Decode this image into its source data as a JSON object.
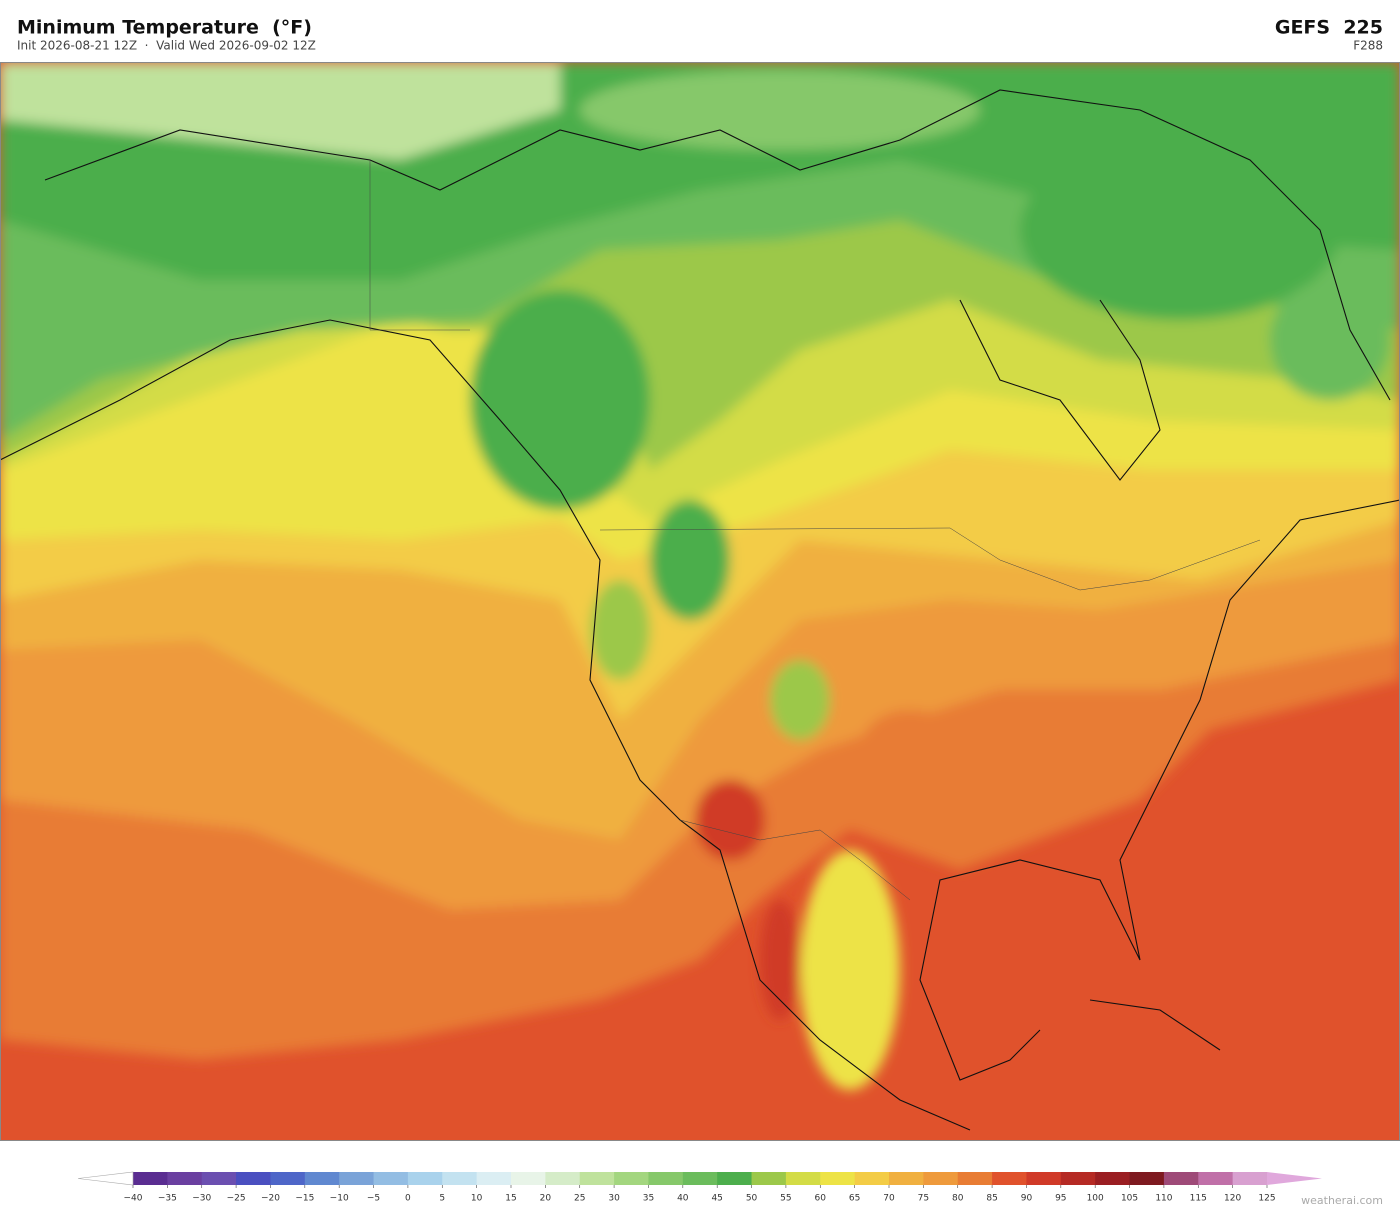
{
  "header": {
    "title": "Minimum Temperature  (°F)",
    "subtitle": "Init 2026-08-21 12Z  ·  Valid Wed 2026-09-02 12Z",
    "model": "GEFS  225",
    "forecast_hour": "F288"
  },
  "colorbar": {
    "ticks": [
      {
        "value": -40,
        "label": "−40"
      },
      {
        "value": -35,
        "label": "−35"
      },
      {
        "value": -30,
        "label": "−30"
      },
      {
        "value": -25,
        "label": "−25"
      },
      {
        "value": -20,
        "label": "−20"
      },
      {
        "value": -15,
        "label": "−15"
      },
      {
        "value": -10,
        "label": "−10"
      },
      {
        "value": -5,
        "label": "−5"
      },
      0,
      5,
      10,
      15,
      20,
      25,
      30,
      35,
      40,
      45,
      50,
      55,
      60,
      65,
      70,
      75,
      80,
      85,
      90,
      95,
      100,
      105,
      110,
      115,
      120,
      125
    ],
    "colors": [
      "#5a2d91",
      "#6a3fa0",
      "#6b4fb0",
      "#4a4fc0",
      "#4e66c8",
      "#6088d0",
      "#7aa3d8",
      "#93bde3",
      "#a9d2ec",
      "#c3e2f0",
      "#dbeef3",
      "#e8f4e8",
      "#d5ecc8",
      "#bfe29c",
      "#a3d67f",
      "#86c86a",
      "#6bbc5c",
      "#4cae4c",
      "#9cc84a",
      "#d3dc46",
      "#ede346",
      "#f3cc46",
      "#f0b040",
      "#ee9a3c",
      "#e87c34",
      "#e0522c",
      "#d03a28",
      "#b52a24",
      "#9a1e22",
      "#7e1a20",
      "#9e4a78",
      "#c070a8",
      "#d8a0d0"
    ],
    "under_color": "#ffffff",
    "over_color": "#e0a8dc"
  },
  "watermark": "weatherai.com"
}
